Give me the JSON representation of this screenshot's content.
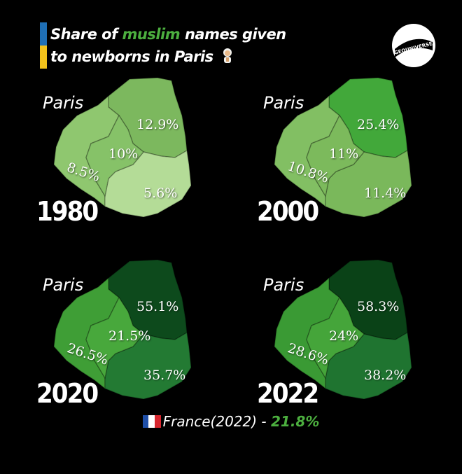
{
  "header": {
    "title_part1": "Share of ",
    "title_highlight": "muslim",
    "title_part2": " names given",
    "title_line2": "to newborns in Paris",
    "logo_text": "GEOUNIVERSE",
    "bar_colors": [
      "#1f6fb5",
      "#f2c21b"
    ],
    "highlight_color": "#4caf3f"
  },
  "maps": [
    {
      "year": "1980",
      "city_label": "Paris",
      "regions": {
        "north": {
          "label": "12.9%",
          "value": 12.9,
          "color": "#7cb85e"
        },
        "center": {
          "label": "10%",
          "value": 10,
          "color": "#86c268"
        },
        "west": {
          "label": "8.5%",
          "value": 8.5,
          "color": "#8fc76f"
        },
        "south": {
          "label": "5.6%",
          "value": 5.6,
          "color": "#b4dc97"
        }
      }
    },
    {
      "year": "2000",
      "city_label": "Paris",
      "regions": {
        "north": {
          "label": "25.4%",
          "value": 25.4,
          "color": "#42a83a"
        },
        "center": {
          "label": "11%",
          "value": 11,
          "color": "#7cba5c"
        },
        "west": {
          "label": "10.8%",
          "value": 10.8,
          "color": "#82bf63"
        },
        "south": {
          "label": "11.4%",
          "value": 11.4,
          "color": "#7ab85b"
        }
      }
    },
    {
      "year": "2020",
      "city_label": "Paris",
      "regions": {
        "north": {
          "label": "55.1%",
          "value": 55.1,
          "color": "#0d4a1c"
        },
        "center": {
          "label": "21.5%",
          "value": 21.5,
          "color": "#48a83c"
        },
        "west": {
          "label": "26.5%",
          "value": 26.5,
          "color": "#3f9e36"
        },
        "south": {
          "label": "35.7%",
          "value": 35.7,
          "color": "#237a33"
        }
      }
    },
    {
      "year": "2022",
      "city_label": "Paris",
      "regions": {
        "north": {
          "label": "58.3%",
          "value": 58.3,
          "color": "#0a4217"
        },
        "center": {
          "label": "24%",
          "value": 24,
          "color": "#45a53a"
        },
        "west": {
          "label": "28.6%",
          "value": 28.6,
          "color": "#3a9a34"
        },
        "south": {
          "label": "38.2%",
          "value": 38.2,
          "color": "#1f7430"
        }
      }
    }
  ],
  "footer": {
    "label": "France(2022) - ",
    "value": "21.8%",
    "flag_colors": [
      "#1f4fa8",
      "#ffffff",
      "#d7262e"
    ]
  }
}
